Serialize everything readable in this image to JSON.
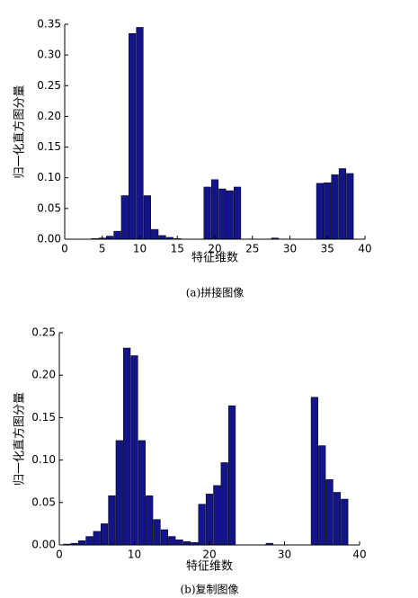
{
  "chart_data": [
    {
      "type": "bar",
      "caption": "(a)拼接图像",
      "xlabel": "特征维数",
      "ylabel": "归一化直方图分量",
      "color": "#14148a",
      "x": [
        1,
        2,
        3,
        4,
        5,
        6,
        7,
        8,
        9,
        10,
        11,
        12,
        13,
        14,
        15,
        16,
        17,
        18,
        19,
        20,
        21,
        22,
        23,
        24,
        25,
        26,
        27,
        28,
        29,
        30,
        31,
        32,
        33,
        34,
        35,
        36,
        37,
        38
      ],
      "values": [
        0,
        0,
        0,
        0.001,
        0.002,
        0.005,
        0.013,
        0.071,
        0.335,
        0.345,
        0.071,
        0.016,
        0.006,
        0.003,
        0.001,
        0,
        0,
        0,
        0.085,
        0.097,
        0.082,
        0.079,
        0.085,
        0,
        0,
        0,
        0,
        0.002,
        0,
        0,
        0,
        0,
        0,
        0.091,
        0.092,
        0.105,
        0.115,
        0.107
      ],
      "xlim": [
        0,
        40
      ],
      "xticks": [
        0,
        5,
        10,
        15,
        20,
        25,
        30,
        35,
        40
      ],
      "ylim": [
        0,
        0.35
      ],
      "yticks": [
        {
          "value": 0,
          "label": "0.00"
        },
        0.05,
        {
          "value": 0.1,
          "label": "0.10"
        },
        0.15,
        {
          "value": 0.2,
          "label": "0.20"
        },
        0.25,
        {
          "value": 0.3,
          "label": "0.30"
        },
        0.35
      ]
    },
    {
      "type": "bar",
      "caption": "(b)复制图像",
      "xlabel": "特征维数",
      "ylabel": "归一化直方图分量",
      "color": "#14148a",
      "x": [
        1,
        2,
        3,
        4,
        5,
        6,
        7,
        8,
        9,
        10,
        11,
        12,
        13,
        14,
        15,
        16,
        17,
        18,
        19,
        20,
        21,
        22,
        23,
        24,
        25,
        26,
        27,
        28,
        29,
        30,
        31,
        32,
        33,
        34,
        35,
        36,
        37,
        38
      ],
      "values": [
        0.001,
        0.002,
        0.005,
        0.01,
        0.016,
        0.025,
        0.058,
        0.123,
        0.232,
        0.223,
        0.123,
        0.058,
        0.03,
        0.018,
        0.01,
        0.006,
        0.004,
        0.003,
        0.048,
        0.06,
        0.07,
        0.097,
        0.164,
        0,
        0,
        0,
        0,
        0.002,
        0,
        0,
        0,
        0,
        0,
        0.174,
        0.117,
        0.077,
        0.062,
        0.054
      ],
      "xlim": [
        0,
        40
      ],
      "xticks": [
        0,
        10,
        20,
        30,
        40
      ],
      "ylim": [
        0,
        0.25
      ],
      "yticks": [
        {
          "value": 0,
          "label": "0.00"
        },
        0.05,
        {
          "value": 0.1,
          "label": "0.10"
        },
        0.15,
        {
          "value": 0.2,
          "label": "0.20"
        },
        0.25
      ]
    }
  ]
}
